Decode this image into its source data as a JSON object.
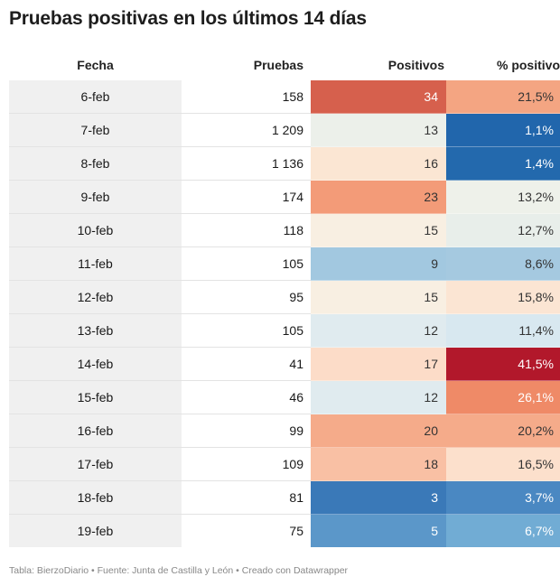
{
  "title": "Pruebas positivas en los últimos 14 días",
  "footer": "Tabla: BierzoDiario • Fuente: Junta de Castilla y León • Creado con Datawrapper",
  "chart_data": {
    "type": "table",
    "columns": [
      "Fecha",
      "Pruebas",
      "Positivos",
      "% positivo"
    ],
    "rows": [
      {
        "fecha": "6-feb",
        "pruebas": "158",
        "positivos": "34",
        "pct": "21,5%",
        "pos_color": "#d6604d",
        "pct_color": "#f4a582",
        "pos_text": "#ffffff",
        "pct_text": "#333333"
      },
      {
        "fecha": "7-feb",
        "pruebas": "1 209",
        "positivos": "13",
        "pct": "1,1%",
        "pos_color": "#ecf0ea",
        "pct_color": "#2166ac",
        "pos_text": "#333333",
        "pct_text": "#ffffff"
      },
      {
        "fecha": "8-feb",
        "pruebas": "1 136",
        "positivos": "16",
        "pct": "1,4%",
        "pos_color": "#fbe6d3",
        "pct_color": "#2369ad",
        "pos_text": "#333333",
        "pct_text": "#ffffff"
      },
      {
        "fecha": "9-feb",
        "pruebas": "174",
        "positivos": "23",
        "pct": "13,2%",
        "pos_color": "#f39b78",
        "pct_color": "#eef1ea",
        "pos_text": "#333333",
        "pct_text": "#333333"
      },
      {
        "fecha": "10-feb",
        "pruebas": "118",
        "positivos": "15",
        "pct": "12,7%",
        "pos_color": "#f8efe2",
        "pct_color": "#e8eeea",
        "pos_text": "#333333",
        "pct_text": "#333333"
      },
      {
        "fecha": "11-feb",
        "pruebas": "105",
        "positivos": "9",
        "pct": "8,6%",
        "pos_color": "#a2c8e0",
        "pct_color": "#a5c9e0",
        "pos_text": "#333333",
        "pct_text": "#333333"
      },
      {
        "fecha": "12-feb",
        "pruebas": "95",
        "positivos": "15",
        "pct": "15,8%",
        "pos_color": "#f8efe2",
        "pct_color": "#fbe5d3",
        "pos_text": "#333333",
        "pct_text": "#333333"
      },
      {
        "fecha": "13-feb",
        "pruebas": "105",
        "positivos": "12",
        "pct": "11,4%",
        "pos_color": "#e0ebef",
        "pct_color": "#d8e8f0",
        "pos_text": "#333333",
        "pct_text": "#333333"
      },
      {
        "fecha": "14-feb",
        "pruebas": "41",
        "positivos": "17",
        "pct": "41,5%",
        "pos_color": "#fcdcc8",
        "pct_color": "#b2182b",
        "pos_text": "#333333",
        "pct_text": "#ffffff"
      },
      {
        "fecha": "15-feb",
        "pruebas": "46",
        "positivos": "12",
        "pct": "26,1%",
        "pos_color": "#e0ebef",
        "pct_color": "#ef8a67",
        "pos_text": "#333333",
        "pct_text": "#ffffff"
      },
      {
        "fecha": "16-feb",
        "pruebas": "99",
        "positivos": "20",
        "pct": "20,2%",
        "pos_color": "#f5ab8a",
        "pct_color": "#f5ab8a",
        "pos_text": "#333333",
        "pct_text": "#333333"
      },
      {
        "fecha": "17-feb",
        "pruebas": "109",
        "positivos": "18",
        "pct": "16,5%",
        "pos_color": "#f9c0a4",
        "pct_color": "#fce0cc",
        "pos_text": "#333333",
        "pct_text": "#333333"
      },
      {
        "fecha": "18-feb",
        "pruebas": "81",
        "positivos": "3",
        "pct": "3,7%",
        "pos_color": "#3a79b8",
        "pct_color": "#4a88c2",
        "pos_text": "#ffffff",
        "pct_text": "#ffffff"
      },
      {
        "fecha": "19-feb",
        "pruebas": "75",
        "positivos": "5",
        "pct": "6,7%",
        "pos_color": "#5b97c9",
        "pct_color": "#71acd4",
        "pos_text": "#ffffff",
        "pct_text": "#ffffff"
      }
    ]
  }
}
